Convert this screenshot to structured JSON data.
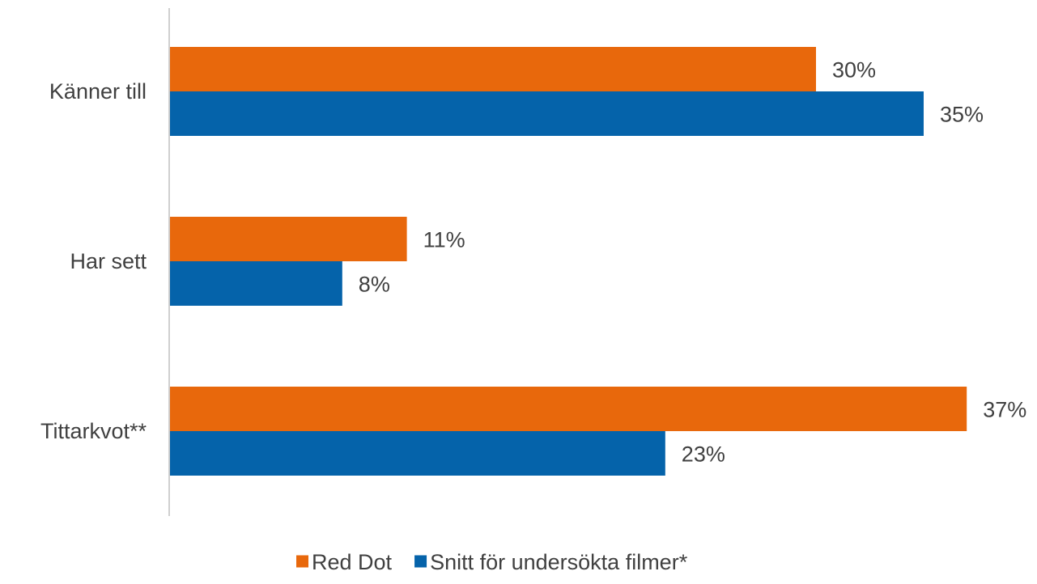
{
  "chart_data": {
    "type": "bar",
    "orientation": "horizontal",
    "categories": [
      "Känner till",
      "Har sett",
      "Tittarkvot**"
    ],
    "series": [
      {
        "name": "Red Dot",
        "color": "#E8680C",
        "values": [
          30,
          11,
          37
        ],
        "labels": [
          "30%",
          "11%",
          "37%"
        ]
      },
      {
        "name": "Snitt för undersökta filmer*",
        "color": "#0563AA",
        "values": [
          35,
          8,
          23
        ],
        "labels": [
          "35%",
          "8%",
          "23%"
        ]
      }
    ],
    "xlim": [
      0,
      40
    ],
    "grid": false,
    "legend": "bottom-center",
    "axis_color": "#D0D0D0",
    "text_color": "#404040"
  }
}
